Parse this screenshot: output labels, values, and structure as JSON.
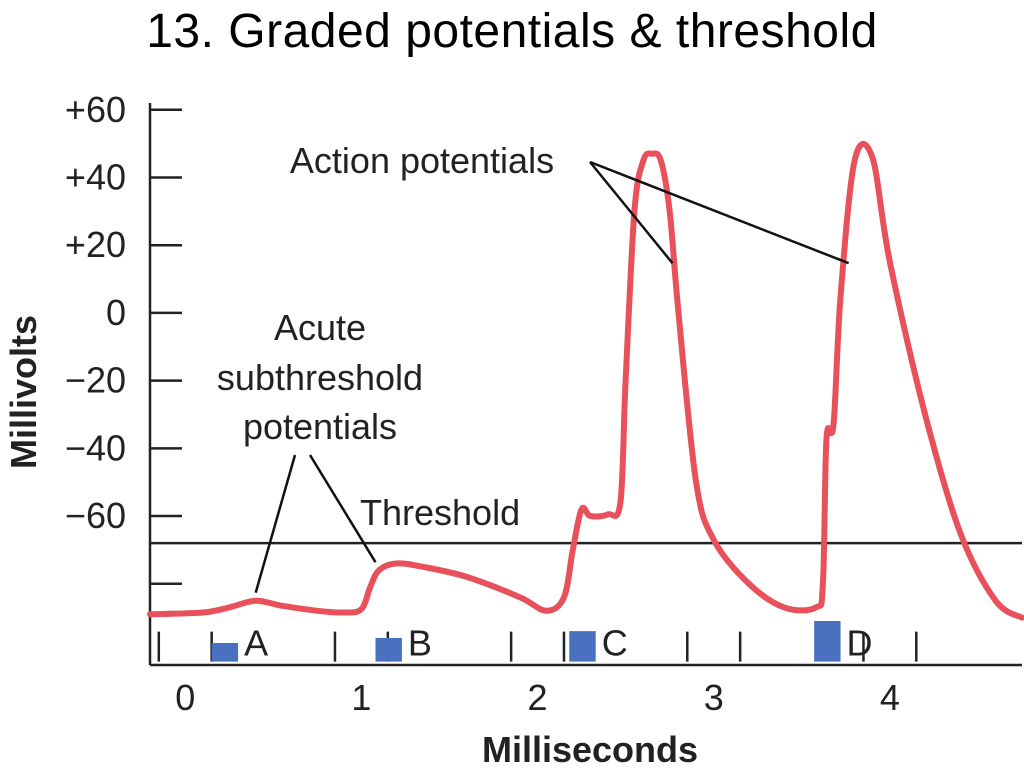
{
  "title": "13. Graded potentials & threshold",
  "chart_data": {
    "type": "line",
    "xlabel": "Milliseconds",
    "ylabel": "Millivolts",
    "xlim": [
      -0.2,
      4.75
    ],
    "ylim": [
      -104,
      62
    ],
    "x_ticks": [
      {
        "value": 0,
        "label": "0"
      },
      {
        "value": 1,
        "label": "1"
      },
      {
        "value": 2,
        "label": "2"
      },
      {
        "value": 3,
        "label": "3"
      },
      {
        "value": 4,
        "label": "4"
      }
    ],
    "y_ticks": [
      {
        "value": 60,
        "label": "+60"
      },
      {
        "value": 40,
        "label": "+40"
      },
      {
        "value": 20,
        "label": "+20"
      },
      {
        "value": 0,
        "label": "0"
      },
      {
        "value": -20,
        "label": "−20"
      },
      {
        "value": -40,
        "label": "−40"
      },
      {
        "value": -60,
        "label": "−60"
      },
      {
        "value": -80,
        "label": ""
      }
    ],
    "threshold": -68,
    "series": [
      {
        "color": "#e8505b",
        "x": [
          -0.2,
          0.1,
          0.25,
          0.4,
          0.55,
          0.75,
          0.9,
          1.0,
          1.05,
          1.1,
          1.2,
          1.35,
          1.6,
          1.9,
          2.05,
          2.15,
          2.2,
          2.25,
          2.3,
          2.4,
          2.47,
          2.5,
          2.55,
          2.6,
          2.65,
          2.7,
          2.75,
          2.8,
          2.9,
          3.0,
          3.2,
          3.4,
          3.58,
          3.62,
          3.64,
          3.68,
          3.72,
          3.8,
          3.9,
          4.0,
          4.2,
          4.4,
          4.6,
          4.75
        ],
        "y": [
          -89,
          -88.5,
          -87,
          -85,
          -86.5,
          -88,
          -88.5,
          -87.5,
          -81,
          -76,
          -74,
          -75,
          -78,
          -84,
          -88,
          -84,
          -70,
          -58,
          -60,
          -59.5,
          -56,
          -20,
          30,
          45,
          47,
          45,
          30,
          0,
          -50,
          -67,
          -80,
          -87,
          -87,
          -80,
          -37,
          -33,
          5,
          45,
          46,
          15,
          -30,
          -65,
          -85,
          -90
        ]
      }
    ],
    "stimuli": [
      {
        "label": "A",
        "x_start": 0.15,
        "x_end": 0.3,
        "height": 5.5
      },
      {
        "label": "B",
        "x_start": 1.08,
        "x_end": 1.23,
        "height": 7
      },
      {
        "label": "C",
        "x_start": 2.18,
        "x_end": 2.33,
        "height": 9
      },
      {
        "label": "D",
        "x_start": 3.57,
        "x_end": 3.72,
        "height": 12
      }
    ],
    "stimulus_ticks": [
      0.0,
      1.0,
      2.0,
      3.0,
      4.0
    ],
    "stimulus_baseline": -103,
    "stimulus_color": "#4a70c0",
    "annotations": [
      {
        "text": "Action potentials",
        "arrow_to": [
          [
            2.8,
            20
          ],
          [
            3.8,
            20
          ]
        ]
      },
      {
        "text": "Acute subthreshold potentials",
        "lines": [
          "Acute",
          "subthreshold",
          "potentials"
        ],
        "arrow_to": [
          [
            0.4,
            -85
          ],
          [
            1.08,
            -76
          ]
        ]
      },
      {
        "text": "Threshold",
        "target_y": -68
      }
    ]
  }
}
